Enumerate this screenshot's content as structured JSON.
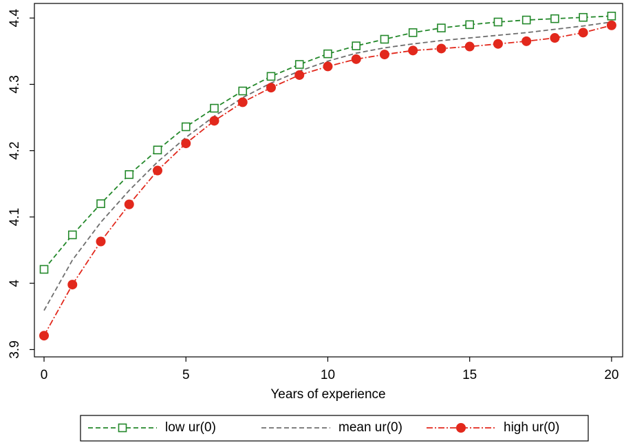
{
  "chart_data": {
    "type": "line",
    "x_label": "Years of experience",
    "x": [
      0,
      1,
      2,
      3,
      4,
      5,
      6,
      7,
      8,
      9,
      10,
      11,
      12,
      13,
      14,
      15,
      16,
      17,
      18,
      19,
      20
    ],
    "series": [
      {
        "name": "low ur(0)",
        "color": "#23882a",
        "marker": "square-hollow",
        "line_style": "dash",
        "values": [
          4.021,
          4.073,
          4.12,
          4.164,
          4.201,
          4.236,
          4.264,
          4.29,
          4.312,
          4.33,
          4.346,
          4.358,
          4.368,
          4.378,
          4.385,
          4.39,
          4.394,
          4.397,
          4.399,
          4.401,
          4.403
        ]
      },
      {
        "name": "mean ur(0)",
        "color": "#6e6e6e",
        "marker": "none",
        "line_style": "dash",
        "values": [
          3.959,
          4.035,
          4.092,
          4.14,
          4.183,
          4.22,
          4.252,
          4.28,
          4.302,
          4.32,
          4.335,
          4.347,
          4.355,
          4.361,
          4.366,
          4.37,
          4.374,
          4.378,
          4.383,
          4.388,
          4.394
        ]
      },
      {
        "name": "high ur(0)",
        "color": "#e2281c",
        "marker": "circle",
        "line_style": "dash-dot",
        "values": [
          3.921,
          3.998,
          4.063,
          4.119,
          4.17,
          4.211,
          4.245,
          4.273,
          4.295,
          4.314,
          4.327,
          4.338,
          4.345,
          4.351,
          4.354,
          4.357,
          4.361,
          4.365,
          4.37,
          4.378,
          4.389
        ]
      }
    ],
    "xlim": [
      -0.34,
      20.39
    ],
    "xticks": [
      0,
      5,
      10,
      15,
      20
    ],
    "ylim": [
      3.889,
      4.422
    ],
    "yticks": [
      3.9,
      4,
      4.1,
      4.2,
      4.3,
      4.4
    ],
    "grid": false,
    "legend_position": "bottom"
  }
}
